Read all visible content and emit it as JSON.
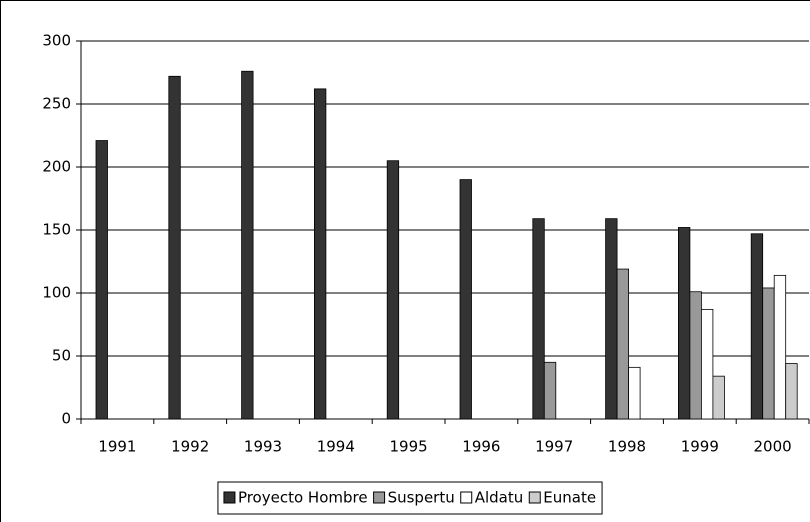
{
  "chart_data": {
    "type": "bar",
    "categories": [
      "1991",
      "1992",
      "1993",
      "1994",
      "1995",
      "1996",
      "1997",
      "1998",
      "1999",
      "2000"
    ],
    "series": [
      {
        "name": "Proyecto Hombre",
        "color": "#333333",
        "values": [
          221,
          272,
          276,
          262,
          205,
          190,
          159,
          159,
          152,
          147
        ]
      },
      {
        "name": "Suspertu",
        "color": "#999999",
        "values": [
          null,
          null,
          null,
          null,
          null,
          null,
          45,
          119,
          101,
          104
        ]
      },
      {
        "name": "Aldatu",
        "color": "#ffffff",
        "values": [
          null,
          null,
          null,
          null,
          null,
          null,
          null,
          41,
          87,
          114
        ]
      },
      {
        "name": "Eunate",
        "color": "#cccccc",
        "values": [
          null,
          null,
          null,
          null,
          null,
          null,
          null,
          null,
          34,
          44
        ]
      }
    ],
    "ylim": [
      0,
      300
    ],
    "yticks": [
      0,
      50,
      100,
      150,
      200,
      250,
      300
    ],
    "grid": true,
    "legend": "bottom"
  }
}
